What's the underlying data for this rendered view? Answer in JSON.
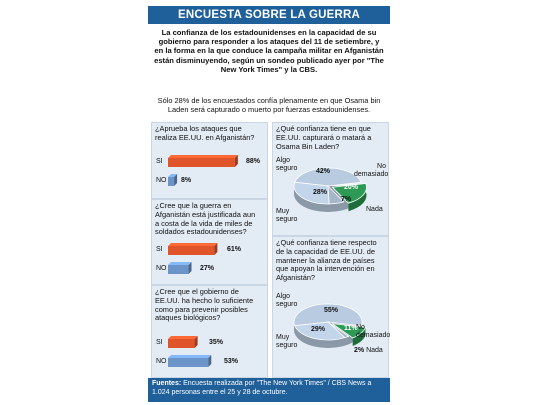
{
  "title": "ENCUESTA SOBRE LA GUERRA",
  "intro": "La confianza de los estadounidenses en la capacidad de su gobierno para  responder a los ataques del 11 de setiembre, y en la forma en la que conduce la campaña militar en Afganistán están disminuyendo, según un sondeo publicado ayer por \"The New York Times\" y la CBS.",
  "subtext": "Sólo 28% de los encuestados confía plenamente en que Osama bin Laden será capturado o muerto por fuerzas estadounidenses.",
  "footer": {
    "label": "Fuentes:",
    "text": "Encuesta realizada por \"The New York Times\" / CBS News a 1.024 personas entre el 25 y 28 de octubre."
  },
  "colors": {
    "si": "#e0542a",
    "no": "#6b94c8",
    "panel": "#e3ebf4",
    "header": "#1f5f9a",
    "pie_base": "#b9cbe0",
    "pie_green": "#2c9a55"
  },
  "chart_data": [
    {
      "type": "bar",
      "question": "¿Aprueba los ataques que realiza EE.UU. en Afganistán?",
      "categories": [
        "SI",
        "NO"
      ],
      "values": [
        88,
        8
      ],
      "labels": [
        "88%",
        "8%"
      ]
    },
    {
      "type": "bar",
      "question": "¿Cree que la guerra en Afganistán está justificada aun a costa de la vida de miles de soldados estadounidenses?",
      "categories": [
        "SI",
        "NO"
      ],
      "values": [
        61,
        27
      ],
      "labels": [
        "61%",
        "27%"
      ]
    },
    {
      "type": "bar",
      "question": "¿Cree que el gobierno de EE.UU. ha hecho lo suficiente como para prevenir posibles ataques biológicos?",
      "categories": [
        "SI",
        "NO"
      ],
      "values": [
        35,
        53
      ],
      "labels": [
        "35%",
        "53%"
      ]
    },
    {
      "type": "pie",
      "question": "¿Qué confianza tiene en que EE.UU. capturará o matará a Osama Bin Laden?",
      "slices": [
        {
          "name": "Algo seguro",
          "value": 42,
          "label": "42%"
        },
        {
          "name": "No demasiado",
          "value": 20,
          "label": "20%"
        },
        {
          "name": "Nada",
          "value": 7,
          "label": "7%"
        },
        {
          "name": "Muy seguro",
          "value": 28,
          "label": "28%"
        }
      ]
    },
    {
      "type": "pie",
      "question": "¿Qué confianza tiene respecto de la capacidad de EE.UU. de mantener la alianza de países que apoyan la intervención en Afganistán?",
      "slices": [
        {
          "name": "Algo seguro",
          "value": 55,
          "label": "55%"
        },
        {
          "name": "No demasiado",
          "value": 11,
          "label": "11%"
        },
        {
          "name": "Nada",
          "value": 2,
          "label": "2%"
        },
        {
          "name": "Muy seguro",
          "value": 29,
          "label": "29%"
        }
      ]
    }
  ]
}
